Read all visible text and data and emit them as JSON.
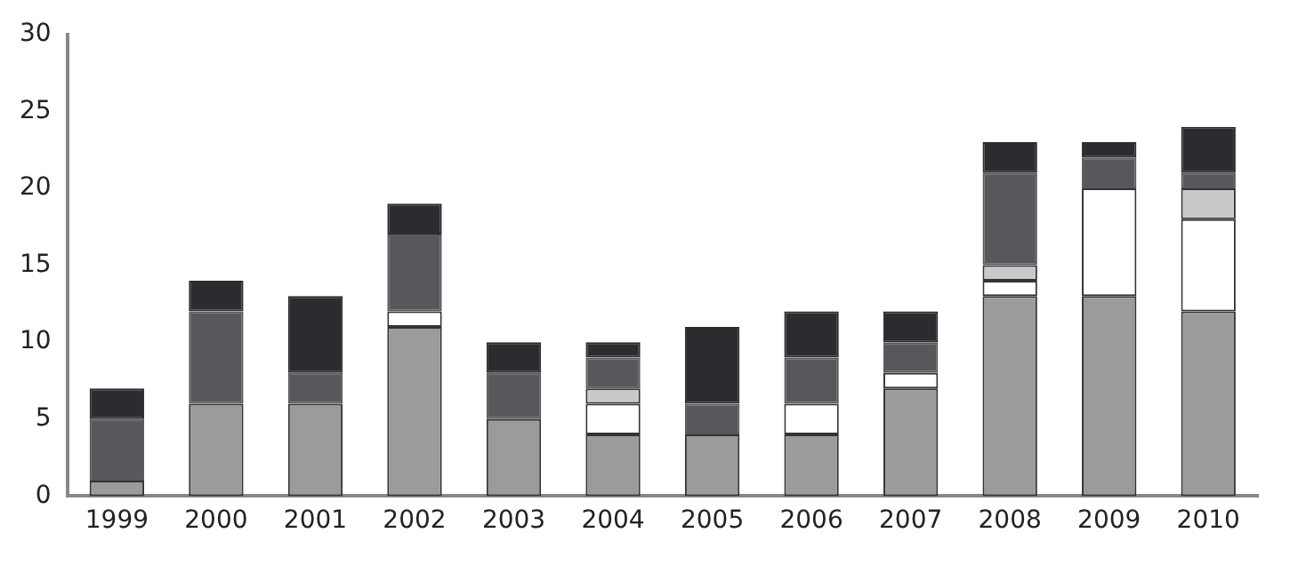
{
  "chart_data": {
    "type": "bar",
    "stacked": true,
    "categories": [
      "1999",
      "2000",
      "2001",
      "2002",
      "2003",
      "2004",
      "2005",
      "2006",
      "2007",
      "2008",
      "2009",
      "2010"
    ],
    "series": [
      {
        "color": "#9a9b9d",
        "values": [
          1,
          6,
          6,
          11,
          5,
          4,
          4,
          4,
          7,
          13,
          13,
          12
        ]
      },
      {
        "color": "#ffffff",
        "values": [
          0,
          0,
          0,
          1,
          0,
          2,
          0,
          2,
          1,
          1,
          7,
          6
        ]
      },
      {
        "color": "#c8c9cb",
        "values": [
          0,
          0,
          0,
          0,
          0,
          1,
          0,
          0,
          0,
          1,
          0,
          2
        ]
      },
      {
        "color": "#57585c",
        "values": [
          4,
          6,
          2,
          5,
          3,
          2,
          2,
          3,
          2,
          6,
          2,
          1
        ]
      },
      {
        "color": "#2b2c30",
        "values": [
          2,
          2,
          5,
          2,
          2,
          1,
          5,
          3,
          2,
          2,
          1,
          3
        ]
      }
    ],
    "ylim": [
      0,
      30
    ],
    "yticks": [
      0,
      5,
      10,
      15,
      20,
      25,
      30
    ],
    "grid": false,
    "legend": false
  }
}
